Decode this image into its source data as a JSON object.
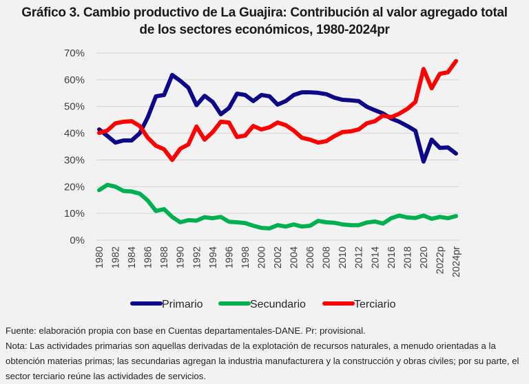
{
  "chart_data": {
    "type": "line",
    "title": "Gráfico 3. Cambio productivo de La Guajira: Contribución al valor agregado total de los sectores económicos, 1980-2024pr",
    "title_lines": [
      "Gráfico 3. Cambio productivo de La Guajira: Contribución al valor agregado total",
      "de los sectores económicos, 1980-2024pr"
    ],
    "xlabel": "",
    "ylabel": "",
    "ylim": [
      0,
      70
    ],
    "yticks": [
      "0%",
      "10%",
      "20%",
      "30%",
      "40%",
      "50%",
      "60%",
      "70%"
    ],
    "grid": true,
    "legend_position": "bottom",
    "x": [
      "1980",
      "1981",
      "1982",
      "1983",
      "1984",
      "1985",
      "1986",
      "1987",
      "1988",
      "1989",
      "1990",
      "1991",
      "1992",
      "1993",
      "1994",
      "1995",
      "1996",
      "1997",
      "1998",
      "1999",
      "2000",
      "2001",
      "2002",
      "2003",
      "2004",
      "2005",
      "2006",
      "2007",
      "2008",
      "2009",
      "2010",
      "2011",
      "2012",
      "2013",
      "2014",
      "2015",
      "2016",
      "2017",
      "2018",
      "2019",
      "2020",
      "2021",
      "2022p",
      "2023",
      "2024pr"
    ],
    "xtick_labels": [
      "1980",
      "1982",
      "1984",
      "1986",
      "1988",
      "1990",
      "1992",
      "1994",
      "1996",
      "1998",
      "2000",
      "2002",
      "2004",
      "2006",
      "2008",
      "2010",
      "2012",
      "2014",
      "2016",
      "2018",
      "2020",
      "2022p",
      "2024pr"
    ],
    "series": [
      {
        "name": "Primario",
        "color": "#0d0887",
        "values": [
          41.4,
          39.0,
          36.5,
          37.3,
          37.3,
          40.0,
          46.0,
          53.8,
          54.3,
          61.8,
          59.6,
          57.0,
          50.5,
          54.0,
          51.7,
          47.1,
          49.4,
          54.8,
          54.3,
          52.0,
          54.3,
          53.8,
          50.7,
          52.0,
          54.3,
          55.3,
          55.3,
          55.1,
          54.6,
          53.3,
          52.5,
          52.3,
          52.0,
          49.9,
          48.6,
          47.4,
          45.5,
          44.3,
          42.7,
          40.9,
          29.4,
          37.6,
          34.5,
          34.7,
          32.4
        ]
      },
      {
        "name": "Secundario",
        "color": "#00b050",
        "values": [
          18.7,
          20.7,
          20.0,
          18.4,
          18.2,
          17.4,
          14.8,
          10.9,
          11.6,
          8.7,
          6.7,
          7.5,
          7.3,
          8.6,
          8.2,
          8.7,
          6.9,
          6.7,
          6.4,
          5.4,
          4.6,
          4.4,
          5.6,
          5.1,
          5.9,
          5.1,
          5.4,
          7.2,
          6.7,
          6.5,
          5.9,
          5.6,
          5.6,
          6.6,
          7.0,
          6.2,
          8.2,
          9.2,
          8.5,
          8.3,
          9.2,
          8.0,
          8.7,
          8.2,
          9.0
        ]
      },
      {
        "name": "Terciario",
        "color": "#ff0000",
        "values": [
          40.1,
          41.0,
          43.7,
          44.3,
          44.5,
          42.7,
          38.3,
          35.3,
          34.0,
          30.0,
          34.2,
          35.8,
          42.5,
          37.6,
          40.4,
          44.3,
          44.0,
          38.6,
          39.1,
          42.7,
          41.4,
          42.2,
          44.0,
          43.0,
          41.0,
          38.3,
          37.6,
          36.5,
          37.0,
          38.9,
          40.4,
          40.7,
          41.4,
          43.7,
          44.5,
          46.6,
          46.0,
          47.3,
          49.1,
          51.7,
          64.0,
          56.8,
          62.2,
          62.8,
          67.0
        ]
      }
    ]
  },
  "footer": {
    "source": "Fuente: elaboración propia con base en Cuentas departamentales-DANE. Pr: provisional.",
    "note": "Nota: Las actividades primarias son aquellas derivadas de la explotación de recursos naturales, a menudo orientadas a la obtención materias primas; las secundarias agregan la industria manufacturera y la construcción y obras civiles; por su parte, el sector terciario reúne las actividades de servicios."
  }
}
